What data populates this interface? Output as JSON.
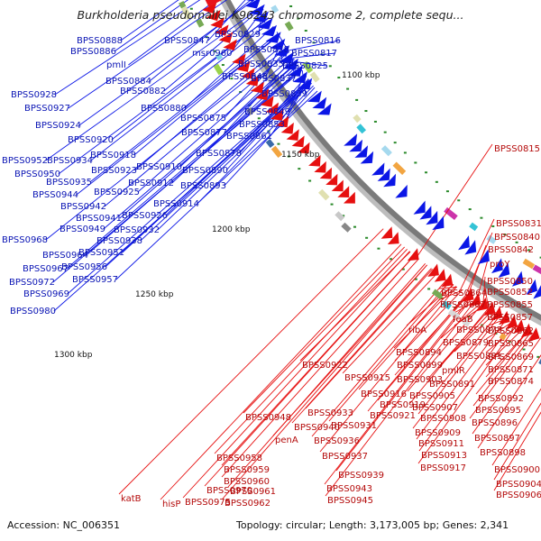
{
  "title": "Burkholderia pseudomallei K96243 chromosome 2, complete sequ...",
  "footer": {
    "accession": "Accession: NC_006351",
    "topology": "Topology: circular; Length: 3,173,005 bp; Genes: 2,341"
  },
  "colors": {
    "forward": "#0b16e6",
    "reverse": "#e60f0f",
    "backbone": "#7a7a7a"
  },
  "kbp_marks": [
    "1100 kbp",
    "1150 kbp",
    "1200 kbp",
    "1250 kbp",
    "1300 kbp"
  ],
  "forward_labels": [
    "BPSS0888",
    "BPSS0886",
    "pmlI",
    "BPSS0884",
    "BPSS0882",
    "BPSS0880",
    "BPSS0847",
    "msr0960",
    "BPSS0829",
    "BPSS0828",
    "BPSS0835",
    "BPSS0848",
    "BPSS0837",
    "BPSS0839",
    "BPSS0816",
    "BPSS0817",
    "BPSS0825",
    "BPSS0849",
    "BPSS0853",
    "BPSS0861",
    "BPSS0928",
    "BPSS0927",
    "BPSS0924",
    "BPSS0920",
    "BPSS0918",
    "BPSS0923",
    "BPSS0875",
    "BPSS0877",
    "BPSS0878",
    "BPSS0952",
    "BPSS0934",
    "BPSS0950",
    "BPSS0935",
    "BPSS0944",
    "BPSS0942",
    "BPSS0910",
    "BPSS0912",
    "BPSS0890",
    "BPSS0893",
    "BPSS0925",
    "BPSS0914",
    "BPSS0926",
    "BPSS0941",
    "BPSS0949",
    "BPSS0932",
    "BPSS0968",
    "BPSS0964",
    "BPSS0951",
    "BPSS0938",
    "BPSS0967",
    "BPSS0956",
    "BPSS0972",
    "BPSS0957",
    "BPSS0969",
    "BPSS0980"
  ],
  "reverse_labels": [
    "BPSS0815",
    "BPSS0831",
    "BPSS0840",
    "BPSS0842",
    "proY",
    "BPSS0850",
    "BPSS0852",
    "BPSS0864",
    "BPSS0855",
    "BPSS0867",
    "feaB",
    "BPSS0857",
    "ribA",
    "BPSS0873",
    "BPSS0862",
    "BPSS0879",
    "BPSS0865",
    "BPSS0894",
    "BPSS0881",
    "BPSS0869",
    "BPSS0899",
    "pmlR",
    "BPSS0871",
    "BPSS0903",
    "BPSS0891",
    "BPSS0874",
    "BPSS0922",
    "BPSS0915",
    "BPSS0916",
    "BPSS0905",
    "BPSS0892",
    "BPSS0919",
    "BPSS0907",
    "BPSS0895",
    "BPSS0921",
    "BPSS0908",
    "BPSS0896",
    "BPSS0948",
    "BPSS0933",
    "BPSS0931",
    "BPSS0909",
    "BPSS0940",
    "BPSS0897",
    "penA",
    "BPSS0936",
    "BPSS0911",
    "BPSS0898",
    "BPSS0913",
    "BPSS0937",
    "BPSS0917",
    "BPSS0900",
    "BPSS0958",
    "BPSS0959",
    "BPSS0939",
    "BPSS0904",
    "BPSS0960",
    "BPSS0943",
    "BPSS0906",
    "BPSS0970",
    "BPSS0961",
    "BPSS0945",
    "BPSS0962",
    "katB",
    "hisP",
    "BPSS0975"
  ]
}
